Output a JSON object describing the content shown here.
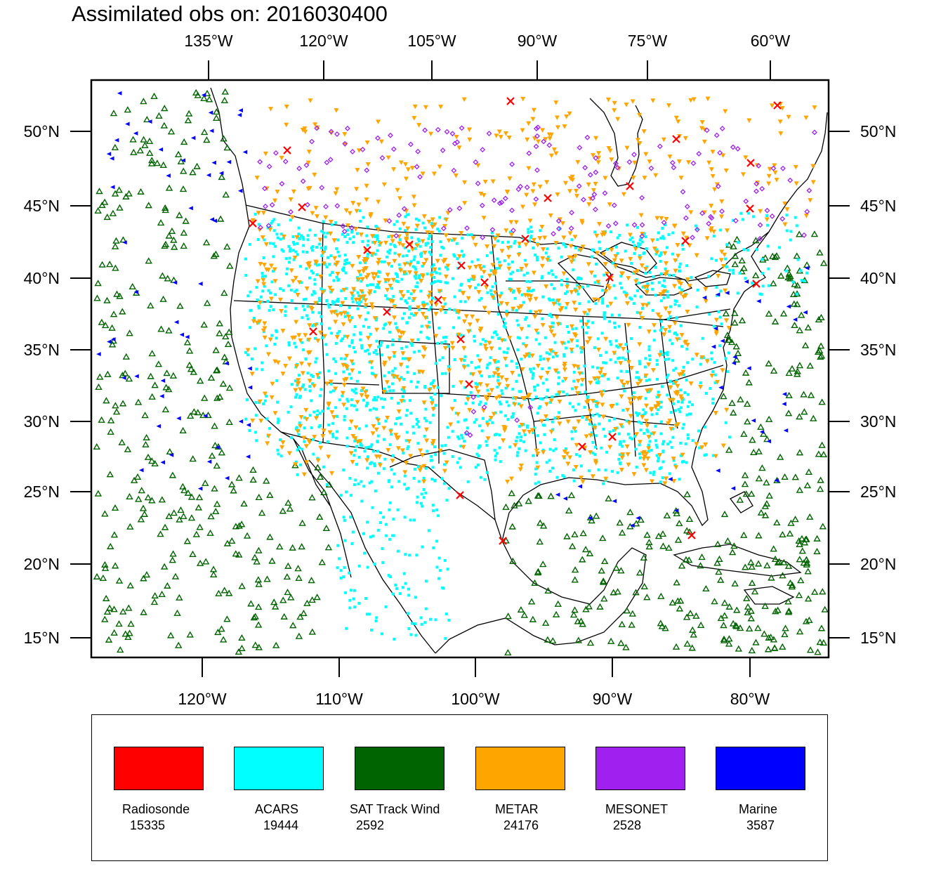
{
  "title": "Assimilated obs on: 2016030400",
  "top_axis_labels": [
    "135°W",
    "120°W",
    "105°W",
    "90°W",
    "75°W",
    "60°W"
  ],
  "bottom_axis_labels": [
    "120°W",
    "110°W",
    "100°W",
    "90°W",
    "80°W"
  ],
  "lat_labels": [
    "50°N",
    "45°N",
    "40°N",
    "35°N",
    "30°N",
    "25°N",
    "20°N",
    "15°N"
  ],
  "legend": [
    {
      "name": "Radiosonde",
      "count": "15335",
      "color": "#ff0000",
      "marker": "x-mark"
    },
    {
      "name": "ACARS",
      "count": "19444",
      "color": "#00ffff",
      "marker": "square-dot"
    },
    {
      "name": "SAT Track Wind",
      "count": "2592",
      "color": "#006400",
      "marker": "hollow-triangle"
    },
    {
      "name": "METAR",
      "count": "24176",
      "color": "#ffa500",
      "marker": "down-triangle"
    },
    {
      "name": "MESONET",
      "count": "2528",
      "color": "#a020f0",
      "marker": "diamond"
    },
    {
      "name": "Marine",
      "count": "3587",
      "color": "#0000ff",
      "marker": "left-triangle"
    }
  ]
}
